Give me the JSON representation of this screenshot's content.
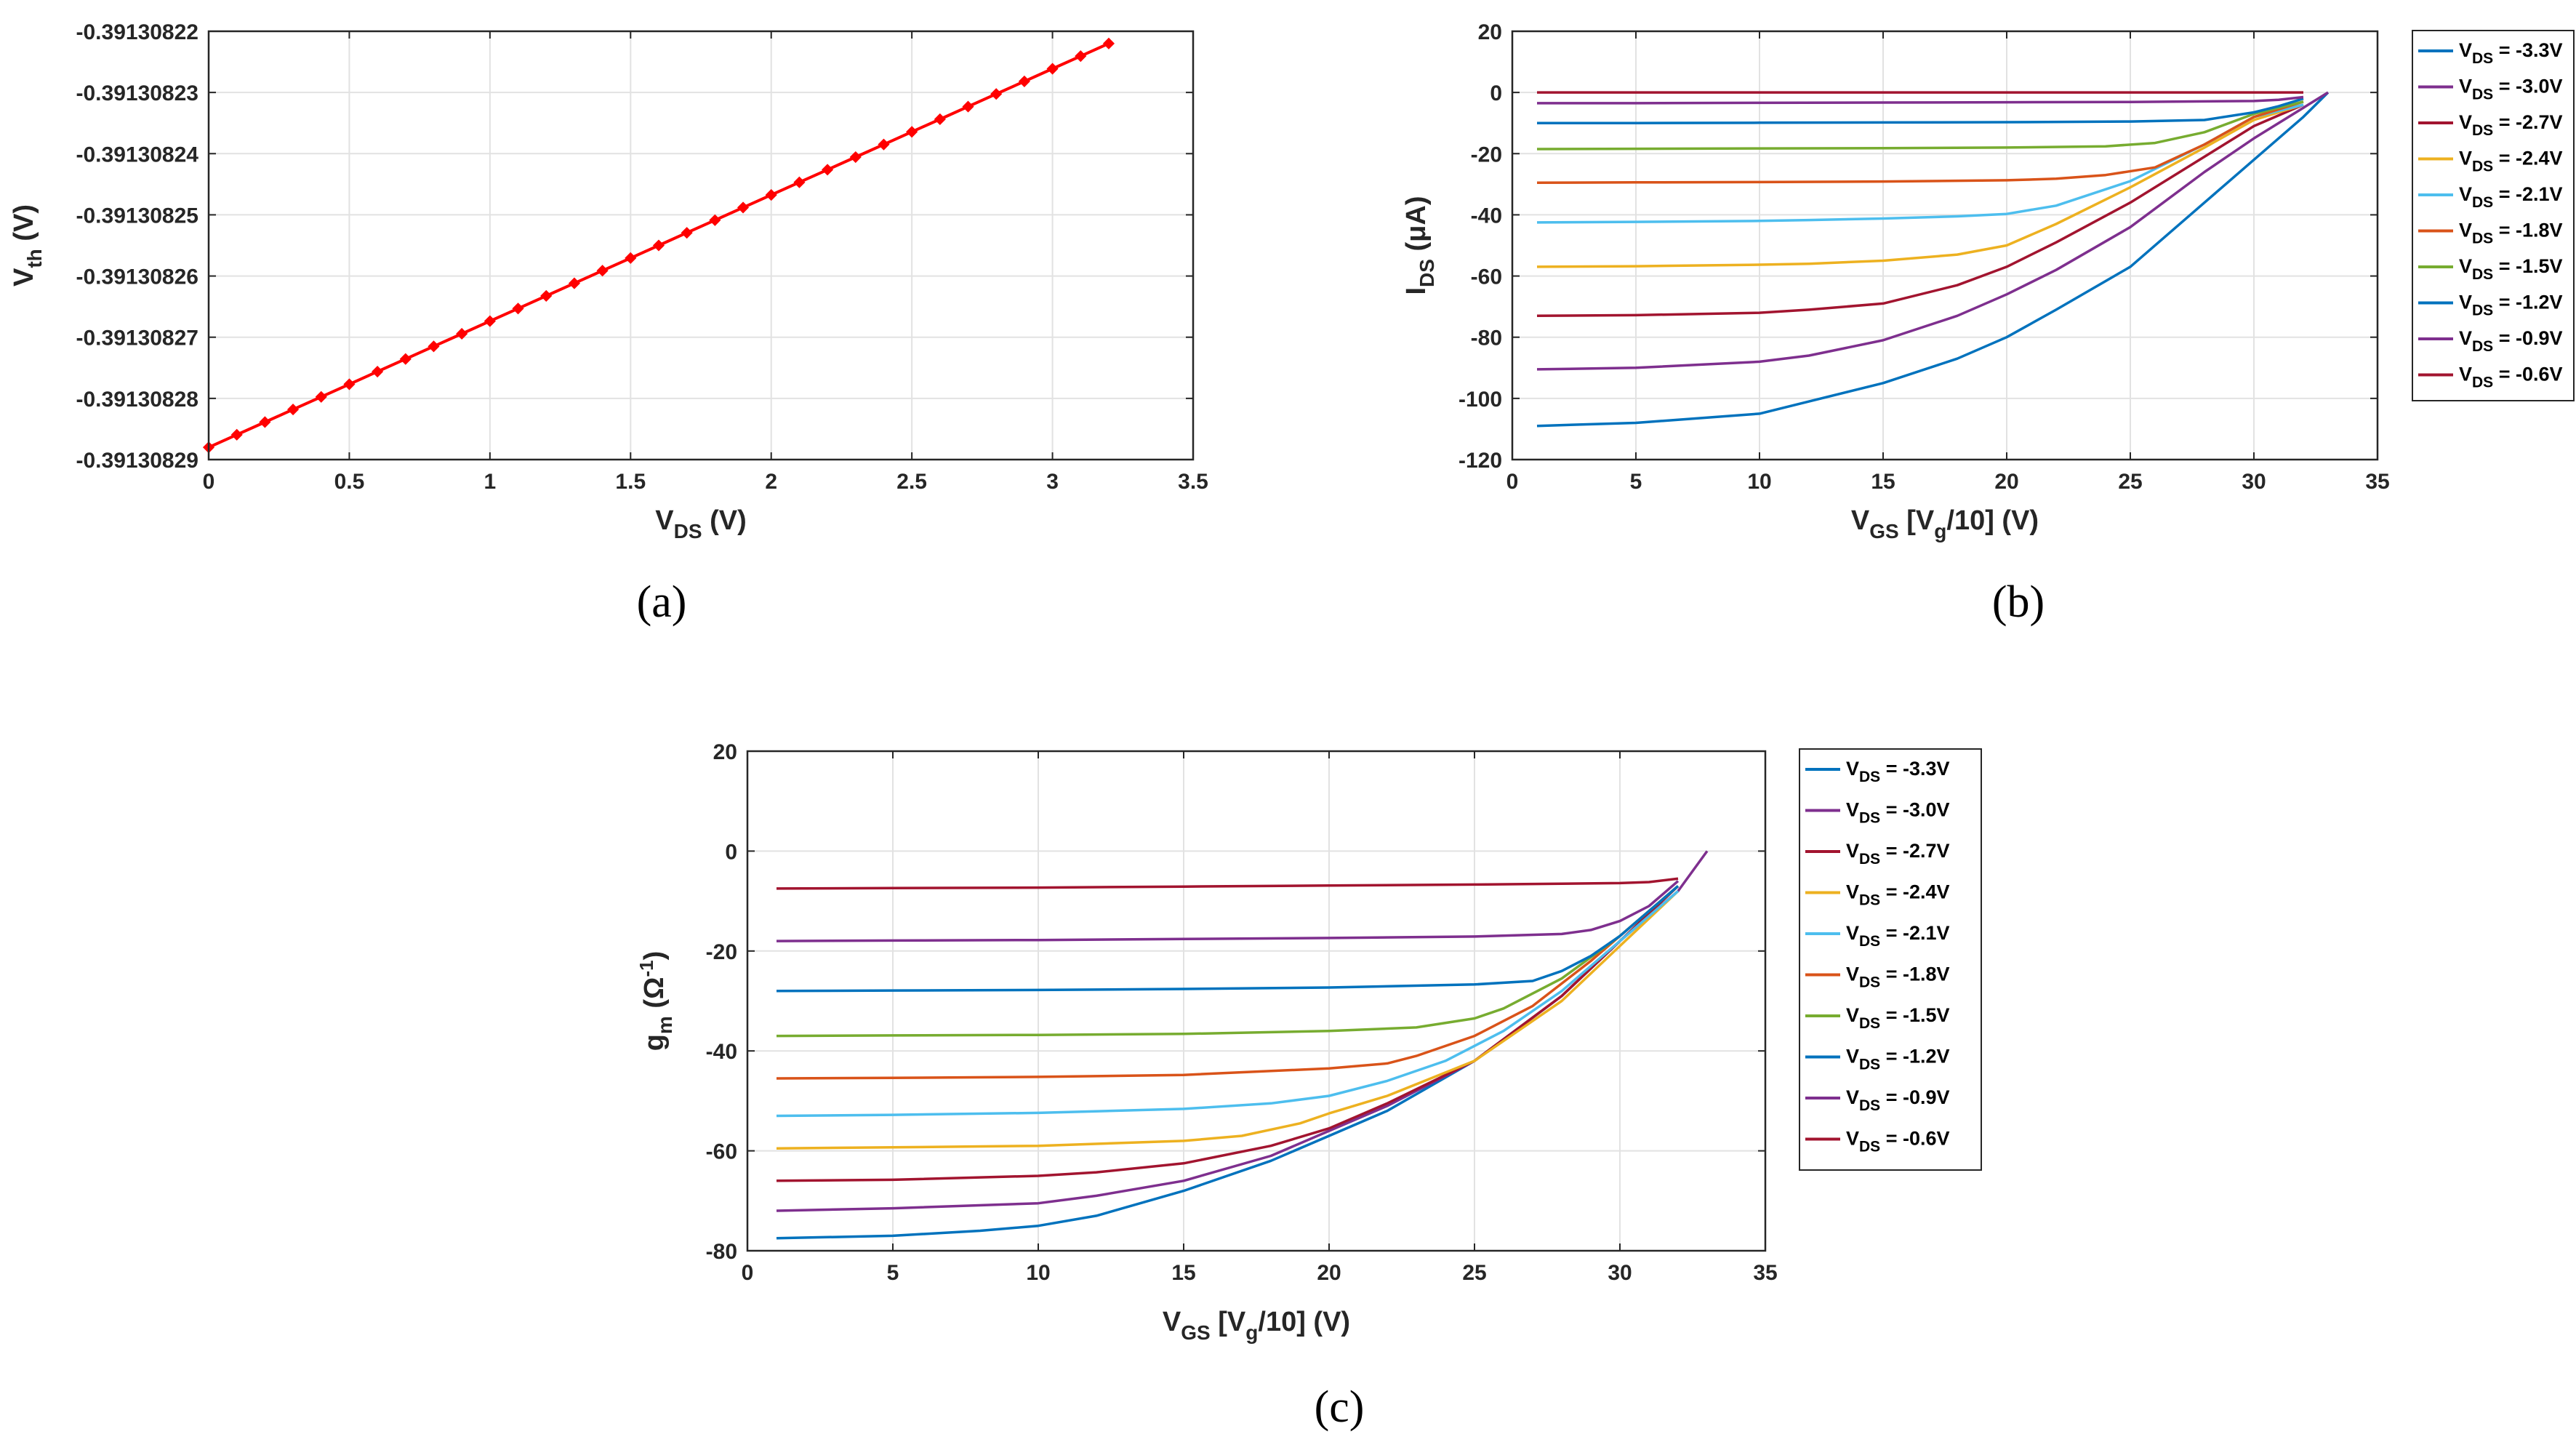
{
  "chart_data": [
    {
      "id": "a",
      "type": "line",
      "caption": "(a)",
      "xlabel": "V",
      "xlabel_sub": "DS",
      "xlabel_tail": " (V)",
      "ylabel": "V",
      "ylabel_sub": "th",
      "ylabel_tail": " (V)",
      "xlim": [
        0,
        3.5
      ],
      "ylim": [
        -0.39130829,
        -0.39130822
      ],
      "xticks": [
        0,
        0.5,
        1,
        1.5,
        2,
        2.5,
        3,
        3.5
      ],
      "xtick_labels": [
        "0",
        "0.5",
        "1",
        "1.5",
        "2",
        "2.5",
        "3",
        "3.5"
      ],
      "yticks": [
        -0.39130822,
        -0.39130823,
        -0.39130824,
        -0.39130825,
        -0.39130826,
        -0.39130827,
        -0.39130828,
        -0.39130829
      ],
      "ytick_labels": [
        "-0.39130822",
        "-0.39130823",
        "-0.39130824",
        "-0.39130825",
        "-0.39130826",
        "-0.39130827",
        "-0.39130828",
        "-0.39130829"
      ],
      "grid": true,
      "series": [
        {
          "name": "Vth",
          "color": "#ff0000",
          "marker": "diamond",
          "x": [
            0,
            0.1,
            0.2,
            0.3,
            0.4,
            0.5,
            0.6,
            0.7,
            0.8,
            0.9,
            1.0,
            1.1,
            1.2,
            1.3,
            1.4,
            1.5,
            1.6,
            1.7,
            1.8,
            1.9,
            2.0,
            2.1,
            2.2,
            2.3,
            2.4,
            2.5,
            2.6,
            2.7,
            2.8,
            2.9,
            3.0,
            3.1,
            3.2
          ],
          "y_start": -0.391308288,
          "y_end": -0.391308222
        }
      ]
    },
    {
      "id": "b",
      "type": "line",
      "caption": "(b)",
      "xlabel": "V",
      "xlabel_sub": "GS",
      "xlabel_tail": " [V",
      "xlabel_sub2": "g",
      "xlabel_tail2": "/10] (V)",
      "ylabel": "I",
      "ylabel_sub": "DS",
      "ylabel_tail": " (μA)",
      "xlim": [
        0,
        35
      ],
      "ylim": [
        -120,
        20
      ],
      "xticks": [
        0,
        5,
        10,
        15,
        20,
        25,
        30,
        35
      ],
      "xtick_labels": [
        "0",
        "5",
        "10",
        "15",
        "20",
        "25",
        "30",
        "35"
      ],
      "yticks": [
        20,
        0,
        -20,
        -40,
        -60,
        -80,
        -100,
        -120
      ],
      "ytick_labels": [
        "20",
        "0",
        "-20",
        "-40",
        "-60",
        "-80",
        "-100",
        "-120"
      ],
      "grid": true,
      "legend_position": "outside-right-top",
      "series": [
        {
          "name": "-3.3V",
          "color": "#0072bd",
          "x": [
            1,
            5,
            10,
            12,
            15,
            18,
            20,
            22,
            25,
            28,
            30,
            32,
            33
          ],
          "y": [
            -109,
            -108,
            -105,
            -101,
            -95,
            -87,
            -80,
            -71,
            -57,
            -36,
            -22,
            -8,
            0
          ]
        },
        {
          "name": "-3.0V",
          "color": "#7e2f8e",
          "x": [
            1,
            5,
            10,
            12,
            15,
            18,
            20,
            22,
            25,
            28,
            30,
            32,
            33
          ],
          "y": [
            -90.5,
            -90,
            -88,
            -86,
            -81,
            -73,
            -66,
            -58,
            -44,
            -26,
            -15,
            -5,
            0
          ]
        },
        {
          "name": "-2.7V",
          "color": "#a2142f",
          "x": [
            1,
            5,
            10,
            12,
            15,
            18,
            20,
            22,
            25,
            28,
            30,
            32
          ],
          "y": [
            -73,
            -72.8,
            -72,
            -71,
            -69,
            -63,
            -57,
            -49,
            -36,
            -21,
            -11,
            -4
          ]
        },
        {
          "name": "-2.4V",
          "color": "#edb120",
          "x": [
            1,
            5,
            10,
            12,
            15,
            18,
            20,
            22,
            25,
            28,
            30,
            32
          ],
          "y": [
            -57,
            -56.8,
            -56.3,
            -56,
            -55,
            -53,
            -50,
            -43,
            -31,
            -18,
            -9,
            -4
          ]
        },
        {
          "name": "-2.1V",
          "color": "#4dbeee",
          "x": [
            1,
            5,
            10,
            12,
            15,
            18,
            20,
            22,
            25,
            28,
            30,
            32
          ],
          "y": [
            -42.5,
            -42.3,
            -42,
            -41.7,
            -41.2,
            -40.5,
            -39.7,
            -37,
            -29,
            -17,
            -8,
            -4
          ]
        },
        {
          "name": "-1.8V",
          "color": "#d95319",
          "x": [
            1,
            5,
            10,
            15,
            20,
            22,
            24,
            26,
            28,
            30,
            32
          ],
          "y": [
            -29.5,
            -29.4,
            -29.3,
            -29.1,
            -28.7,
            -28.2,
            -27,
            -24.5,
            -17,
            -8,
            -3
          ]
        },
        {
          "name": "-1.5V",
          "color": "#77ac30",
          "x": [
            1,
            5,
            10,
            15,
            20,
            24,
            26,
            28,
            30,
            32
          ],
          "y": [
            -18.5,
            -18.4,
            -18.3,
            -18.2,
            -18,
            -17.6,
            -16.5,
            -13,
            -7,
            -3
          ]
        },
        {
          "name": "-1.2V",
          "color": "#0072bd",
          "x": [
            1,
            5,
            10,
            15,
            20,
            25,
            28,
            30,
            31,
            32
          ],
          "y": [
            -10,
            -10,
            -9.9,
            -9.8,
            -9.7,
            -9.5,
            -9,
            -6.5,
            -4.5,
            -2
          ]
        },
        {
          "name": "-0.9V",
          "color": "#7e2f8e",
          "x": [
            1,
            5,
            10,
            15,
            20,
            25,
            30,
            31,
            32
          ],
          "y": [
            -3.5,
            -3.5,
            -3.4,
            -3.3,
            -3.2,
            -3.1,
            -2.8,
            -2.4,
            -1.5
          ]
        },
        {
          "name": "-0.6V",
          "color": "#a2142f",
          "x": [
            1,
            10,
            20,
            30,
            32
          ],
          "y": [
            0,
            0,
            0,
            0,
            0
          ]
        }
      ]
    },
    {
      "id": "c",
      "type": "line",
      "caption": "(c)",
      "xlabel": "V",
      "xlabel_sub": "GS",
      "xlabel_tail": " [V",
      "xlabel_sub2": "g",
      "xlabel_tail2": "/10] (V)",
      "ylabel": "g",
      "ylabel_sub": "m",
      "ylabel_tail": " (Ω",
      "ylabel_sup": "-1",
      "ylabel_tail2": ")",
      "xlim": [
        0,
        35
      ],
      "ylim": [
        -80,
        20
      ],
      "xticks": [
        0,
        5,
        10,
        15,
        20,
        25,
        30,
        35
      ],
      "xtick_labels": [
        "0",
        "5",
        "10",
        "15",
        "20",
        "25",
        "30",
        "35"
      ],
      "yticks": [
        20,
        0,
        -20,
        -40,
        -60,
        -80
      ],
      "ytick_labels": [
        "20",
        "0",
        "-20",
        "-40",
        "-60",
        "-80"
      ],
      "grid": true,
      "legend_position": "outside-right-top",
      "series": [
        {
          "name": "-3.3V",
          "color": "#0072bd",
          "x": [
            1,
            5,
            8,
            10,
            12,
            15,
            18,
            20,
            22,
            25,
            28,
            30,
            32
          ],
          "y": [
            -77.5,
            -77,
            -76,
            -75,
            -73,
            -68,
            -62,
            -57,
            -52,
            -42,
            -29,
            -18,
            -8
          ]
        },
        {
          "name": "-3.0V",
          "color": "#7e2f8e",
          "x": [
            1,
            5,
            10,
            12,
            15,
            18,
            20,
            22,
            25,
            28,
            30,
            32,
            33
          ],
          "y": [
            -72,
            -71.5,
            -70.5,
            -69,
            -66,
            -61,
            -56,
            -51,
            -42,
            -29,
            -18,
            -8,
            0
          ]
        },
        {
          "name": "-2.7V",
          "color": "#a2142f",
          "x": [
            1,
            5,
            10,
            12,
            15,
            18,
            20,
            22,
            25,
            28,
            30,
            32
          ],
          "y": [
            -66,
            -65.8,
            -65,
            -64.3,
            -62.5,
            -59,
            -55.5,
            -50.5,
            -42,
            -29,
            -18,
            -7
          ]
        },
        {
          "name": "-2.4V",
          "color": "#edb120",
          "x": [
            1,
            5,
            10,
            15,
            17,
            19,
            20,
            22,
            25,
            28,
            30,
            32
          ],
          "y": [
            -59.5,
            -59.3,
            -59,
            -58,
            -57,
            -54.5,
            -52.5,
            -49,
            -42,
            -30,
            -19,
            -8
          ]
        },
        {
          "name": "-2.1V",
          "color": "#4dbeee",
          "x": [
            1,
            5,
            10,
            15,
            18,
            20,
            22,
            24,
            26,
            28,
            30,
            32
          ],
          "y": [
            -53,
            -52.8,
            -52.4,
            -51.6,
            -50.5,
            -49,
            -46,
            -42,
            -36,
            -28,
            -18,
            -8
          ]
        },
        {
          "name": "-1.8V",
          "color": "#d95319",
          "x": [
            1,
            5,
            10,
            15,
            20,
            22,
            23,
            25,
            27,
            29,
            31,
            32
          ],
          "y": [
            -45.5,
            -45.4,
            -45.2,
            -44.8,
            -43.5,
            -42.5,
            -41,
            -37,
            -31,
            -22,
            -12,
            -7
          ]
        },
        {
          "name": "-1.5V",
          "color": "#77ac30",
          "x": [
            1,
            5,
            10,
            15,
            20,
            23,
            25,
            26,
            28,
            30,
            32
          ],
          "y": [
            -37,
            -36.9,
            -36.8,
            -36.6,
            -36,
            -35.3,
            -33.5,
            -31.5,
            -25.5,
            -17,
            -7
          ]
        },
        {
          "name": "-1.2V",
          "color": "#0072bd",
          "x": [
            1,
            5,
            10,
            15,
            20,
            25,
            27,
            28,
            29,
            30,
            31,
            32
          ],
          "y": [
            -28,
            -27.9,
            -27.8,
            -27.6,
            -27.3,
            -26.7,
            -26,
            -24,
            -21,
            -17,
            -12,
            -7
          ]
        },
        {
          "name": "-0.9V",
          "color": "#7e2f8e",
          "x": [
            1,
            5,
            10,
            15,
            20,
            25,
            28,
            29,
            30,
            31,
            32
          ],
          "y": [
            -18,
            -17.9,
            -17.8,
            -17.6,
            -17.4,
            -17.1,
            -16.6,
            -15.8,
            -14,
            -11,
            -6
          ]
        },
        {
          "name": "-0.6V",
          "color": "#a2142f",
          "x": [
            1,
            5,
            10,
            15,
            20,
            25,
            30,
            31,
            32
          ],
          "y": [
            -7.5,
            -7.4,
            -7.3,
            -7.1,
            -6.9,
            -6.7,
            -6.4,
            -6.2,
            -5.5
          ]
        }
      ]
    }
  ],
  "legend_prefix": "V",
  "legend_sub": "DS",
  "legend_mid": " = "
}
